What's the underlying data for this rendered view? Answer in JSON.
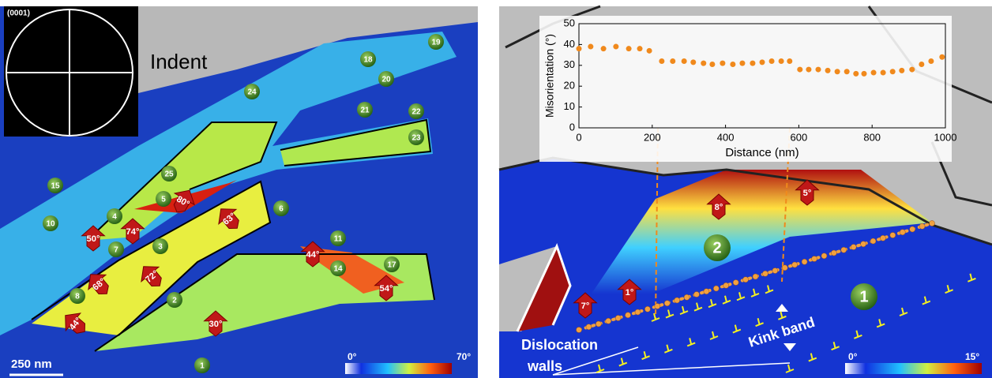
{
  "chart_data": {
    "type": "scatter",
    "xlabel": "Distance (nm)",
    "ylabel": "Misorientation (°)",
    "x": [
      0,
      32,
      67,
      101,
      136,
      166,
      192,
      226,
      256,
      287,
      312,
      340,
      364,
      392,
      420,
      446,
      474,
      500,
      526,
      552,
      575,
      603,
      627,
      653,
      679,
      705,
      731,
      756,
      778,
      804,
      830,
      856,
      881,
      909,
      935,
      961,
      991
    ],
    "values": [
      38,
      39,
      38,
      39,
      38,
      38,
      37,
      32,
      32,
      32,
      31.5,
      31,
      30.5,
      31,
      30.5,
      31,
      31,
      31.5,
      32,
      32,
      32,
      28,
      28,
      28,
      27.5,
      27,
      27,
      26,
      26,
      26.5,
      26.5,
      27,
      27.5,
      28,
      30.5,
      32,
      34
    ],
    "color": "#f0891c",
    "xlim": [
      0,
      1000
    ],
    "ylim": [
      0,
      50
    ],
    "xticks": [
      0,
      200,
      400,
      600,
      800,
      1000
    ],
    "yticks": [
      0,
      10,
      20,
      30,
      40,
      50
    ]
  },
  "left_panel": {
    "pole_figure_label": "(0001)",
    "indent_label": "Indent",
    "scale_bar": "250 nm",
    "colorbar": {
      "min_label": "0°",
      "max_label": "70°"
    },
    "grains": [
      "1",
      "2",
      "3",
      "4",
      "5",
      "6",
      "7",
      "8",
      "10",
      "11",
      "14",
      "15",
      "17",
      "18",
      "19",
      "20",
      "21",
      "22",
      "23",
      "24",
      "25"
    ],
    "misorientations": [
      "80°",
      "63°",
      "74°",
      "50°",
      "72°",
      "68°",
      "44°",
      "44°",
      "54°",
      "30°"
    ]
  },
  "right_panel": {
    "grains": [
      "2",
      "1"
    ],
    "misorientations": [
      "8°",
      "5°",
      "1°",
      "7°"
    ],
    "dislocation_label": [
      "Dislocation",
      "walls"
    ],
    "kink_label": "Kink band",
    "colorbar": {
      "min_label": "0°",
      "max_label": "15°"
    }
  }
}
